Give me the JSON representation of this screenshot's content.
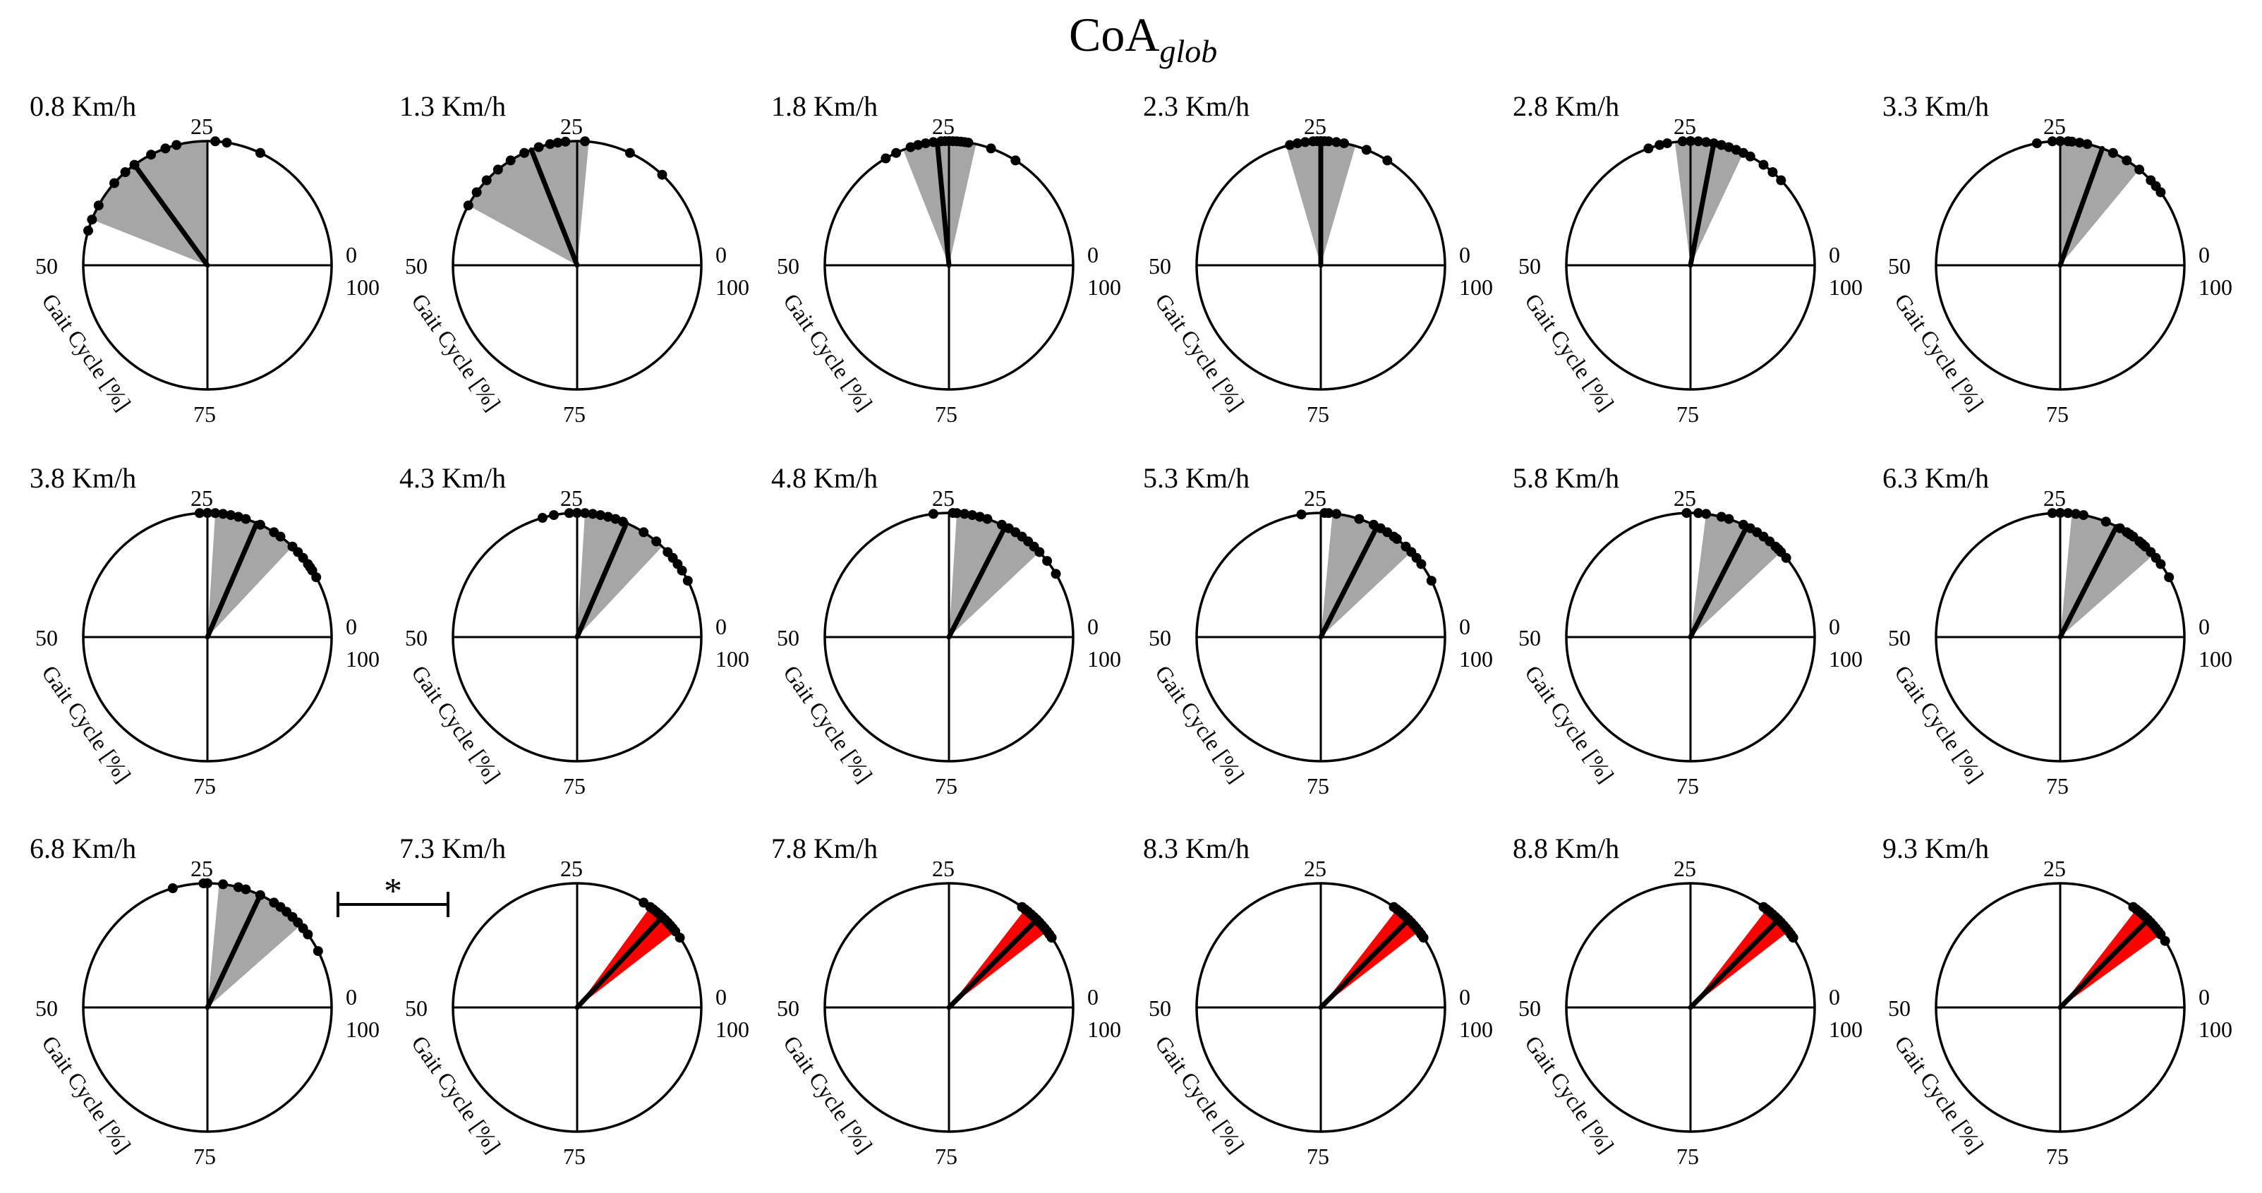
{
  "chart_data": {
    "type": "circular",
    "title": "CoA",
    "title_subscript": "glob",
    "axis_label": "Gait Cycle [%]",
    "ticks": [
      "0",
      "25",
      "50",
      "75",
      "100"
    ],
    "significance_marker": "*",
    "colors": {
      "nonsignificant_sector": "#a6a6a6",
      "significant_sector": "#ff0000",
      "line": "#000000",
      "points": "#000000"
    },
    "panels": [
      {
        "speed": "0.8 Km/h",
        "significant": false,
        "mean": 35.0,
        "sector": [
          25.0,
          44.0
        ],
        "points": [
          18,
          22.5,
          24,
          29,
          30.5,
          32.5,
          35,
          36.5,
          38.5,
          42,
          44,
          45.5
        ]
      },
      {
        "speed": "1.3 Km/h",
        "significant": false,
        "mean": 31.0,
        "sector": [
          23.5,
          42.0
        ],
        "points": [
          13,
          18,
          24,
          26.5,
          27.5,
          28.5,
          30,
          32,
          34,
          36,
          38,
          40,
          42
        ]
      },
      {
        "speed": "1.8 Km/h",
        "significant": false,
        "mean": 26.5,
        "sector": [
          21.5,
          31.0
        ],
        "points": [
          16,
          19.5,
          22.5,
          23,
          23.5,
          24,
          24.5,
          25,
          25.5,
          26,
          27,
          28,
          29,
          30,
          32,
          33.5
        ]
      },
      {
        "speed": "2.3 Km/h",
        "significant": false,
        "mean": 25.0,
        "sector": [
          20.5,
          29.5
        ],
        "points": [
          16,
          19,
          22,
          23,
          24,
          24.5,
          25,
          25.5,
          26,
          27,
          28,
          29
        ]
      },
      {
        "speed": "2.8 Km/h",
        "significant": false,
        "mean": 22.0,
        "sector": [
          18.0,
          27.0
        ],
        "points": [
          12,
          13.5,
          15,
          17,
          18,
          19,
          20,
          21,
          22,
          23,
          24,
          25,
          26,
          28,
          29,
          30.5
        ]
      },
      {
        "speed": "3.3 Km/h",
        "significant": false,
        "mean": 19.5,
        "sector": [
          14.0,
          25.0
        ],
        "points": [
          10,
          11,
          12,
          14,
          16,
          18,
          21.5,
          22.5,
          23.5,
          24,
          25,
          26,
          28
        ]
      },
      {
        "speed": "3.8 Km/h",
        "significant": false,
        "mean": 18.5,
        "sector": [
          13.0,
          24.0
        ],
        "points": [
          8,
          9,
          9.5,
          10,
          11,
          12,
          13,
          15,
          16,
          18,
          20,
          21,
          22,
          23,
          24,
          25,
          26
        ]
      },
      {
        "speed": "4.3 Km/h",
        "significant": false,
        "mean": 18.5,
        "sector": [
          13.0,
          24.0
        ],
        "points": [
          7.5,
          9,
          10,
          11,
          12,
          14,
          16,
          19,
          20,
          21,
          22,
          23,
          24,
          25,
          26,
          28,
          29.5
        ]
      },
      {
        "speed": "4.8 Km/h",
        "significant": false,
        "mean": 17.5,
        "sector": [
          12.0,
          24.0
        ],
        "points": [
          8.5,
          10.5,
          12,
          13,
          14,
          15,
          16,
          17,
          18,
          20,
          21,
          22,
          23,
          24,
          24.5,
          27
        ]
      },
      {
        "speed": "5.3 Km/h",
        "significant": false,
        "mean": 17.5,
        "sector": [
          12.0,
          23.5
        ],
        "points": [
          7.5,
          10,
          11,
          12,
          13,
          14.5,
          15,
          16,
          17,
          18,
          20,
          23,
          24,
          24.5,
          27.5
        ]
      },
      {
        "speed": "5.8 Km/h",
        "significant": false,
        "mean": 17.5,
        "sector": [
          12.0,
          23.0
        ],
        "points": [
          11,
          12,
          12.5,
          13,
          14,
          15,
          16,
          17,
          18,
          20,
          21,
          23,
          24,
          25.5
        ]
      },
      {
        "speed": "6.3 Km/h",
        "significant": false,
        "mean": 17.5,
        "sector": [
          11.5,
          23.5
        ],
        "points": [
          8,
          10,
          11,
          12,
          13,
          13.5,
          14,
          15,
          15.5,
          16,
          17,
          19,
          22,
          23,
          24,
          25,
          26
        ]
      },
      {
        "speed": "6.8 Km/h",
        "significant": false,
        "mean": 18.0,
        "sector": [
          11.5,
          23.5
        ],
        "points": [
          7.5,
          10,
          11,
          12,
          13,
          14,
          15,
          16,
          18,
          20,
          21,
          23,
          25,
          25.5,
          29.5
        ]
      },
      {
        "speed": "7.3 Km/h",
        "significant": true,
        "mean": 13.0,
        "sector": [
          10.5,
          15.0
        ],
        "points": [
          9.5,
          10.5,
          11,
          11.5,
          12,
          12.5,
          13,
          13.5,
          14,
          14.5,
          15,
          16
        ]
      },
      {
        "speed": "7.8 Km/h",
        "significant": true,
        "mean": 12.5,
        "sector": [
          10.5,
          14.5
        ],
        "points": [
          9.5,
          10,
          10.5,
          11,
          11.5,
          12,
          12.5,
          13,
          13.5,
          14,
          14.5,
          15
        ]
      },
      {
        "speed": "8.3 Km/h",
        "significant": true,
        "mean": 12.5,
        "sector": [
          10.5,
          14.5
        ],
        "points": [
          9.5,
          10,
          10.5,
          11,
          11.5,
          12,
          12.5,
          13,
          13.5,
          14,
          14.5,
          15
        ]
      },
      {
        "speed": "8.8 Km/h",
        "significant": true,
        "mean": 12.5,
        "sector": [
          10.5,
          14.5
        ],
        "points": [
          9.5,
          10,
          10.5,
          11,
          11.5,
          12,
          12.5,
          13,
          13.5,
          14,
          14.5,
          15
        ]
      },
      {
        "speed": "9.3 Km/h",
        "significant": true,
        "mean": 12.5,
        "sector": [
          10.0,
          14.5
        ],
        "points": [
          9,
          10,
          10.5,
          11,
          11.5,
          12,
          12.5,
          13,
          13.5,
          14,
          14.5,
          15
        ]
      }
    ]
  }
}
